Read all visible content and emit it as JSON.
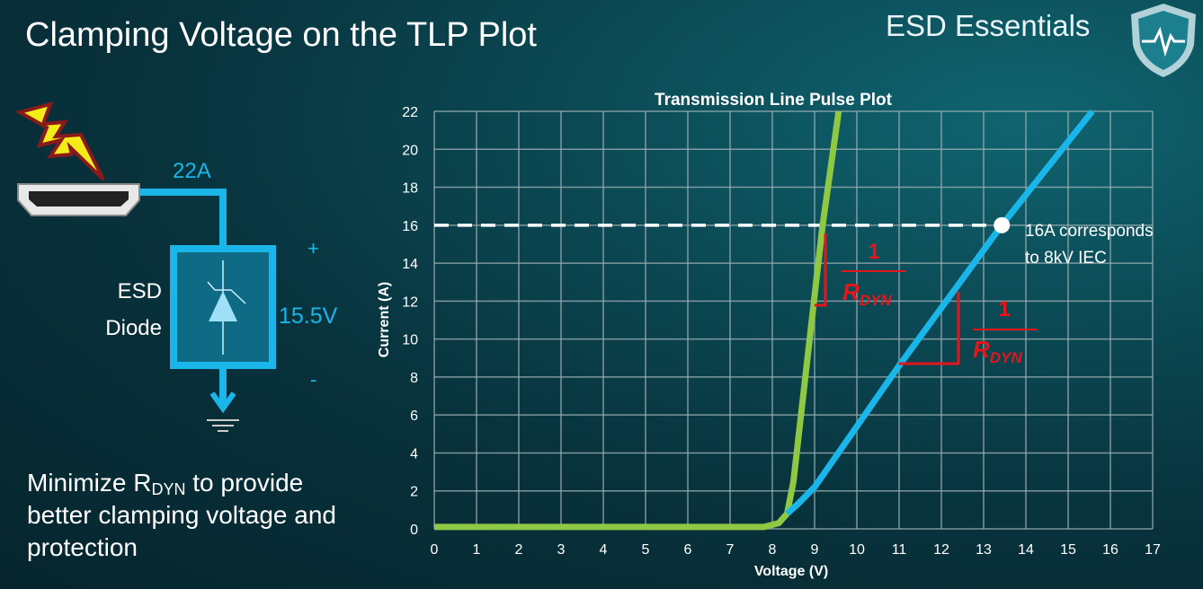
{
  "slide": {
    "title": "Clamping Voltage on the TLP Plot",
    "brand": "ESD Essentials",
    "note_pre": "Minimize R",
    "note_sub": "DYN",
    "note_post": " to provide better clamping voltage and protection"
  },
  "diagram": {
    "current": "22A",
    "device_line1": "ESD",
    "device_line2": "Diode",
    "voltage": "15.5V",
    "plus": "+",
    "minus": "-"
  },
  "colors": {
    "accent": "#1ab6ea",
    "green": "#8fc843",
    "red": "#e3161b"
  },
  "chart_data": {
    "type": "line",
    "title": "Transmission Line Pulse Plot",
    "xlabel": "Voltage (V)",
    "ylabel": "Current (A)",
    "xlim": [
      0,
      17
    ],
    "ylim": [
      0,
      22
    ],
    "xticks": [
      0,
      1,
      2,
      3,
      4,
      5,
      6,
      7,
      8,
      9,
      10,
      11,
      12,
      13,
      14,
      15,
      16,
      17
    ],
    "yticks": [
      0,
      2,
      4,
      6,
      8,
      10,
      12,
      14,
      16,
      18,
      20,
      22
    ],
    "grid": true,
    "series": [
      {
        "color": "#8fc843",
        "points": [
          [
            0,
            0.1
          ],
          [
            7.8,
            0.1
          ],
          [
            8.15,
            0.3
          ],
          [
            8.35,
            0.8
          ],
          [
            8.5,
            2.5
          ],
          [
            9.19,
            16
          ],
          [
            9.57,
            22
          ]
        ]
      },
      {
        "color": "#1ab6ea",
        "points": [
          [
            8.35,
            0.8
          ],
          [
            8.6,
            1.3
          ],
          [
            9,
            2.2
          ],
          [
            11,
            8.6
          ],
          [
            13.43,
            16
          ],
          [
            15.57,
            22
          ]
        ]
      }
    ],
    "reference_line": {
      "y": 16,
      "style": "dashed"
    },
    "marker": {
      "x": 13.43,
      "y": 16
    },
    "annotation": {
      "line1": "16A corresponds",
      "line2": "to 8kV IEC"
    },
    "slope_labels": [
      {
        "num": "1",
        "den": "R",
        "den_sub": "DYN"
      },
      {
        "num": "1",
        "den": "R",
        "den_sub": "DYN"
      }
    ]
  }
}
